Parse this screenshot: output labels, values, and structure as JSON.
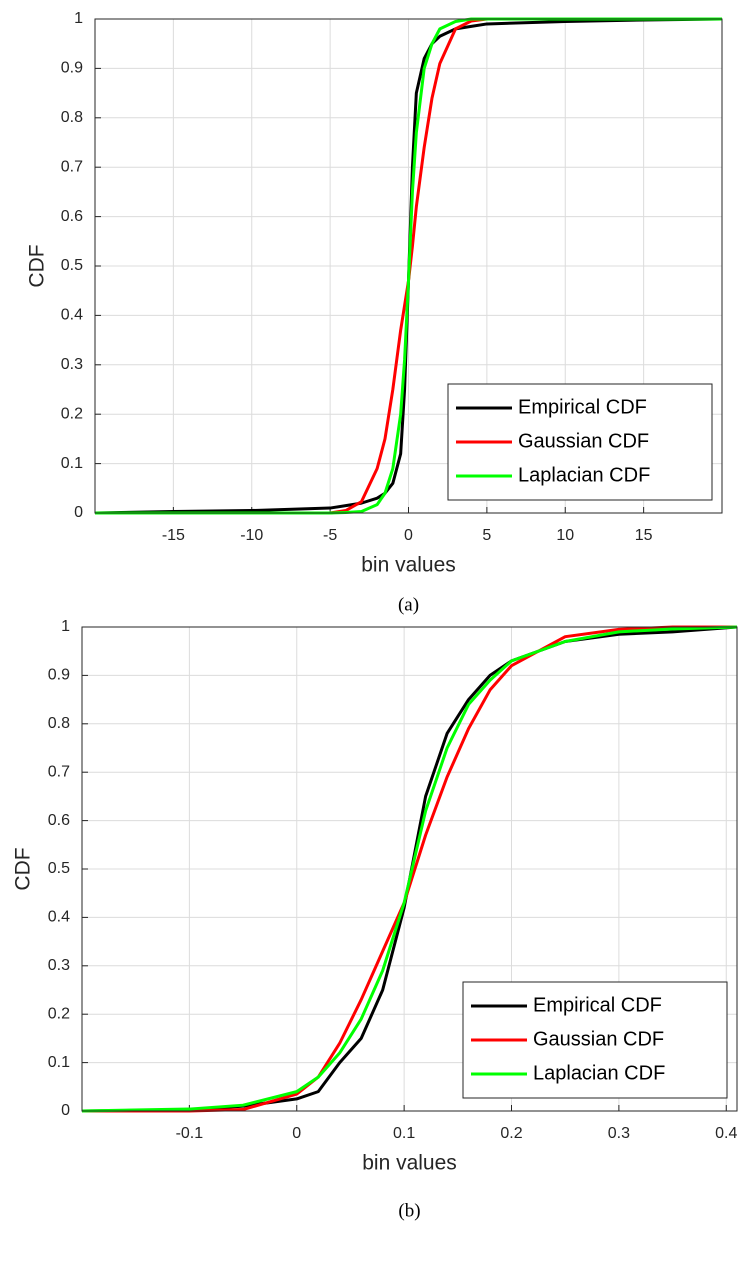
{
  "chart_data": [
    {
      "type": "line",
      "caption": "(a)",
      "xlabel": "bin values",
      "ylabel": "CDF",
      "x": [
        -20,
        -15,
        -10,
        -5,
        -4,
        -3,
        -2,
        -1.5,
        -1,
        -0.5,
        -0.25,
        0,
        0.25,
        0.5,
        1,
        1.5,
        2,
        3,
        4,
        5,
        10,
        15,
        20
      ],
      "series": [
        {
          "name": "Empirical CDF",
          "color": "#000000",
          "values": [
            0,
            0.003,
            0.005,
            0.01,
            0.015,
            0.02,
            0.03,
            0.04,
            0.06,
            0.12,
            0.25,
            0.47,
            0.7,
            0.85,
            0.92,
            0.95,
            0.965,
            0.98,
            0.985,
            0.99,
            0.995,
            0.998,
            1
          ]
        },
        {
          "name": "Gaussian CDF",
          "color": "#ff0000",
          "values": [
            0,
            0,
            0,
            0,
            0.005,
            0.023,
            0.09,
            0.15,
            0.25,
            0.37,
            0.42,
            0.47,
            0.54,
            0.62,
            0.74,
            0.84,
            0.91,
            0.98,
            0.996,
            1,
            1,
            1,
            1
          ]
        },
        {
          "name": "Laplacian CDF",
          "color": "#00ff00",
          "values": [
            0,
            0,
            0,
            0,
            0.001,
            0.003,
            0.017,
            0.04,
            0.09,
            0.2,
            0.31,
            0.47,
            0.65,
            0.77,
            0.9,
            0.95,
            0.98,
            0.995,
            1,
            1,
            1,
            1,
            1
          ]
        }
      ],
      "xlim": [
        -20,
        20
      ],
      "ylim": [
        0,
        1
      ],
      "xticks": [
        -15,
        -10,
        -5,
        0,
        5,
        10,
        15
      ],
      "yticks": [
        0,
        0.1,
        0.2,
        0.3,
        0.4,
        0.5,
        0.6,
        0.7,
        0.8,
        0.9,
        1
      ],
      "grid": true,
      "legend": "lower right"
    },
    {
      "type": "line",
      "caption": "(b)",
      "xlabel": "bin values",
      "ylabel": "CDF",
      "x": [
        -0.2,
        -0.1,
        -0.05,
        0,
        0.02,
        0.04,
        0.06,
        0.08,
        0.1,
        0.12,
        0.14,
        0.16,
        0.18,
        0.2,
        0.25,
        0.3,
        0.35,
        0.41
      ],
      "series": [
        {
          "name": "Empirical CDF",
          "color": "#000000",
          "values": [
            0,
            0.002,
            0.01,
            0.025,
            0.04,
            0.1,
            0.15,
            0.25,
            0.42,
            0.65,
            0.78,
            0.85,
            0.9,
            0.93,
            0.97,
            0.985,
            0.99,
            1
          ]
        },
        {
          "name": "Gaussian CDF",
          "color": "#ff0000",
          "values": [
            0,
            0,
            0.003,
            0.035,
            0.07,
            0.14,
            0.23,
            0.33,
            0.43,
            0.57,
            0.69,
            0.79,
            0.87,
            0.92,
            0.98,
            0.995,
            1,
            1
          ]
        },
        {
          "name": "Laplacian CDF",
          "color": "#00ff00",
          "values": [
            0,
            0.004,
            0.012,
            0.04,
            0.07,
            0.12,
            0.19,
            0.29,
            0.43,
            0.62,
            0.75,
            0.84,
            0.89,
            0.93,
            0.97,
            0.99,
            0.996,
            1
          ]
        }
      ],
      "xlim": [
        -0.2,
        0.41
      ],
      "ylim": [
        0,
        1
      ],
      "xticks": [
        -0.1,
        0,
        0.1,
        0.2,
        0.3,
        0.4
      ],
      "yticks": [
        0,
        0.1,
        0.2,
        0.3,
        0.4,
        0.5,
        0.6,
        0.7,
        0.8,
        0.9,
        1
      ],
      "grid": true,
      "legend": "lower right"
    }
  ]
}
